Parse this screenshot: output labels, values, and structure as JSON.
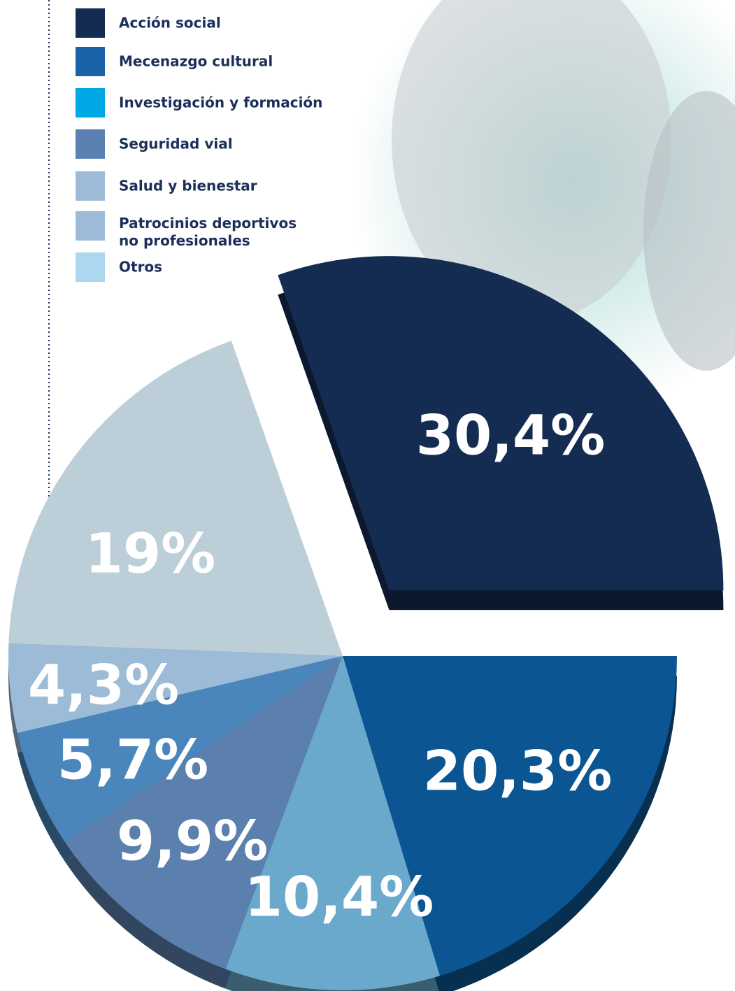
{
  "chart_data": {
    "type": "pie",
    "categories": [
      "Acción social",
      "Mecenazgo cultural",
      "Investigación y formación",
      "Seguridad vial",
      "Salud y bienestar",
      "Patrocinios deportivos no profesionales",
      "Otros"
    ],
    "legend_colors": [
      "#142c52",
      "#1a62a6",
      "#00a9e6",
      "#5b80b2",
      "#9dbbd6",
      "#9dbbd6",
      "#add6ef"
    ],
    "values": [
      30.4,
      20.3,
      10.4,
      9.9,
      5.7,
      4.3,
      19
    ],
    "value_labels": [
      "30,4%",
      "20,3%",
      "10,4%",
      "9,9%",
      "5,7%",
      "4,3%",
      "19%"
    ],
    "colors": [
      "#142c52",
      "#0a5592",
      "#6aa9cc",
      "#5b80ad",
      "#4a86bb",
      "#9bbbd6",
      "#bccfd8"
    ]
  }
}
